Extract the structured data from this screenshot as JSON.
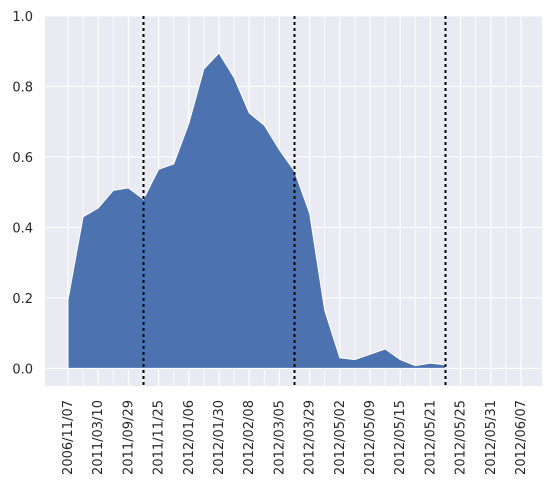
{
  "chart_data": {
    "type": "area",
    "title": "",
    "xlabel": "",
    "ylabel": "",
    "ylim": [
      -0.05,
      1.0
    ],
    "yticks": [
      0.0,
      0.2,
      0.4,
      0.6,
      0.8,
      1.0
    ],
    "ytick_labels": [
      "0.0",
      "0.2",
      "0.4",
      "0.6",
      "0.8",
      "1.0"
    ],
    "xtick_labels": [
      "2006/11/07",
      "2011/03/10",
      "2011/09/29",
      "2011/11/25",
      "2012/01/06",
      "2012/01/30",
      "2012/02/08",
      "2012/03/05",
      "2012/03/29",
      "2012/05/02",
      "2012/05/09",
      "2012/05/15",
      "2012/05/21",
      "2012/05/25",
      "2012/05/31",
      "2012/06/07"
    ],
    "x_index": [
      0,
      1,
      2,
      3,
      4,
      5,
      6,
      7,
      8,
      9,
      10,
      11,
      12,
      13,
      14,
      15,
      16,
      17,
      18,
      19,
      20,
      21,
      22,
      23,
      24,
      25,
      26,
      27,
      28,
      29,
      30
    ],
    "values": [
      0.195,
      0.43,
      0.455,
      0.505,
      0.512,
      0.48,
      0.565,
      0.58,
      0.695,
      0.85,
      0.895,
      0.825,
      0.725,
      0.69,
      0.62,
      0.56,
      0.44,
      0.165,
      0.03,
      0.025,
      0.04,
      0.055,
      0.025,
      0.008,
      0.015,
      0.01,
      0.0,
      0.0,
      0.0,
      0.0,
      0.0
    ],
    "area_end_index": 25,
    "vertical_lines_at_index": [
      5,
      15,
      25
    ],
    "grid": true,
    "background": "#eaeaf2",
    "colors": {
      "area": "#4c72b0",
      "grid": "#ffffff",
      "vline": "#000000"
    }
  }
}
